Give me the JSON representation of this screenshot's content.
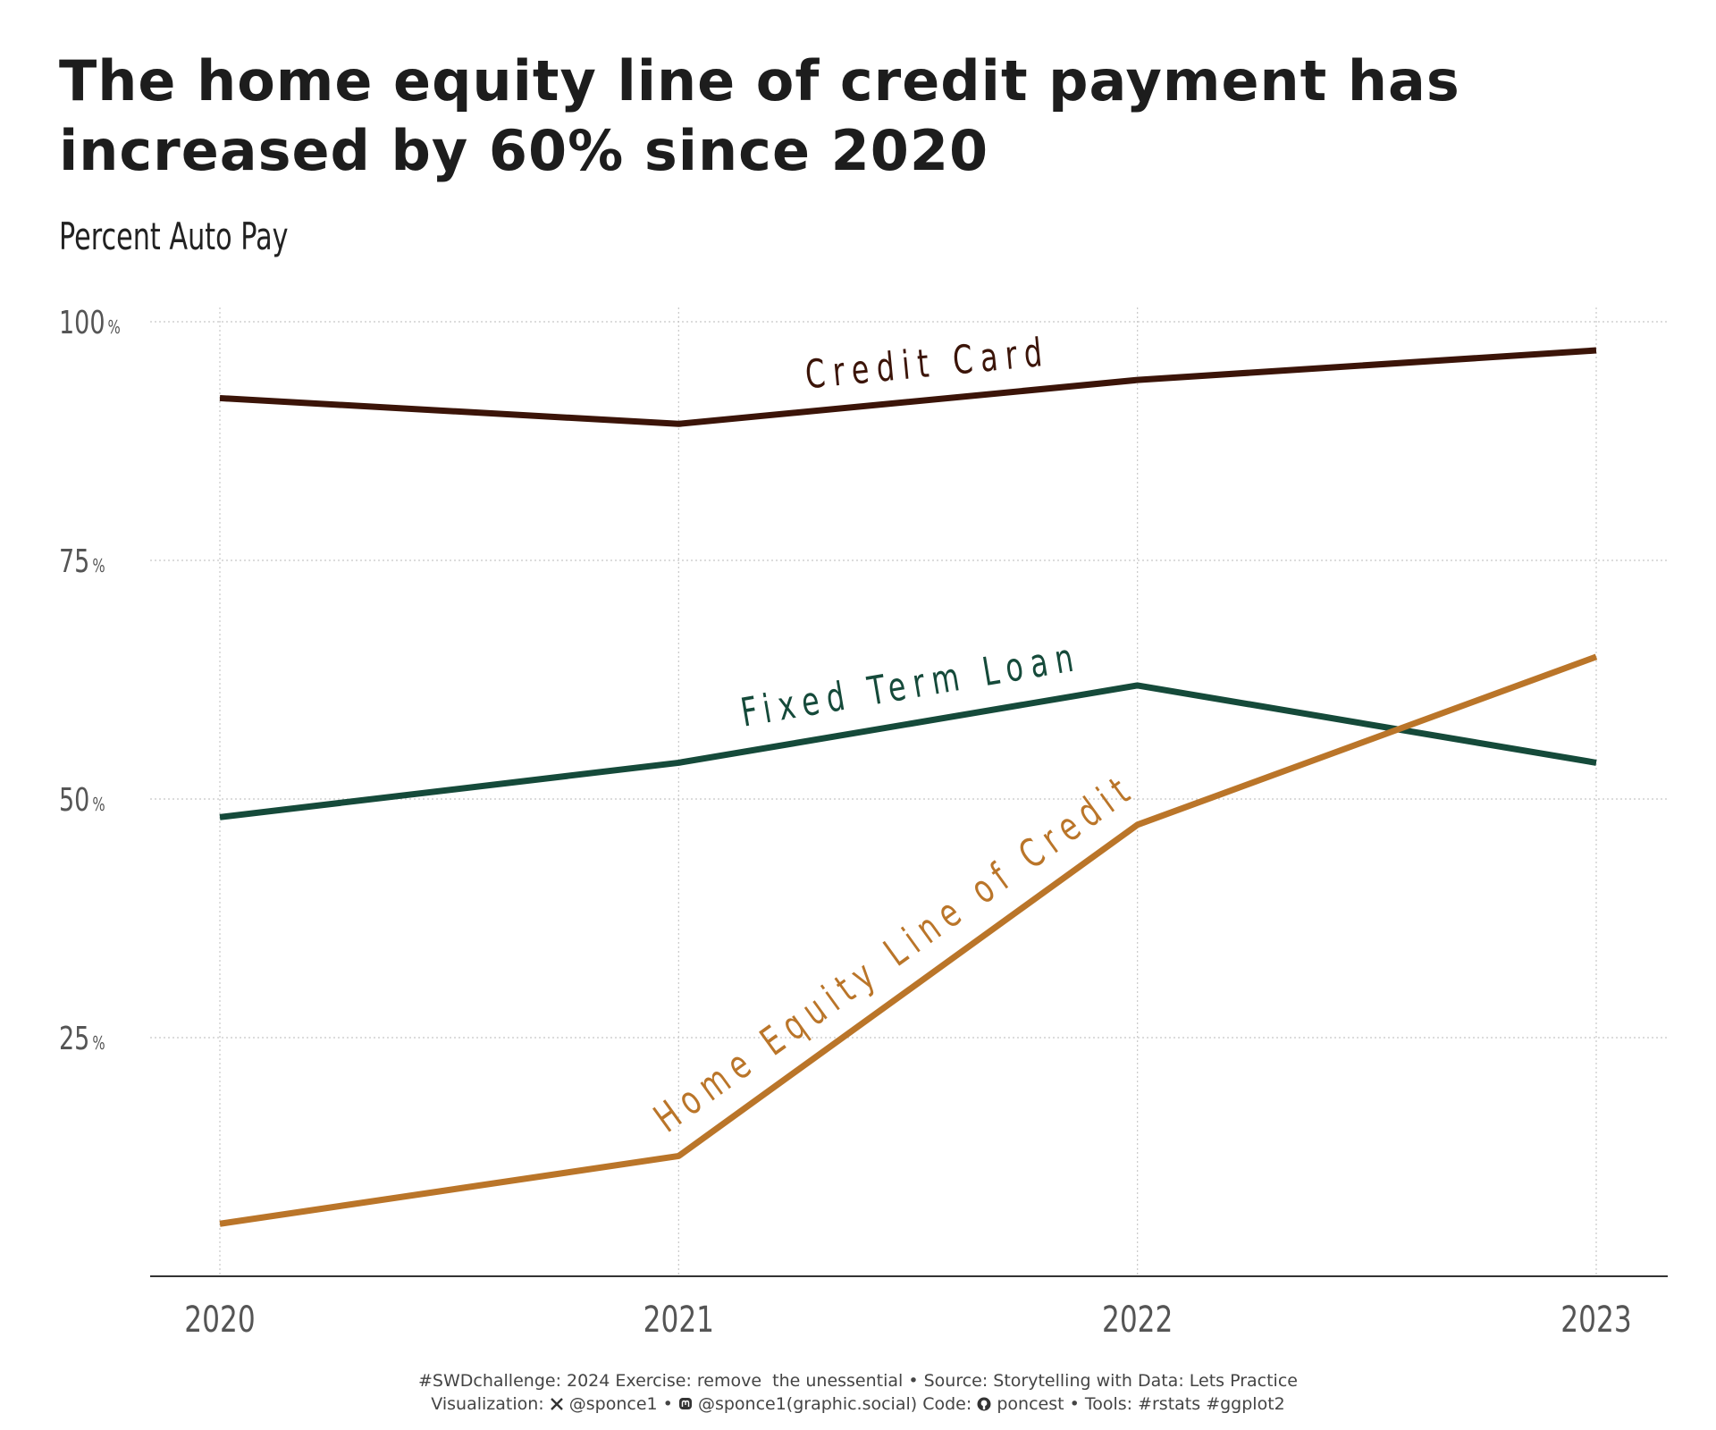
{
  "title": "The home equity line of credit payment has increased by 60% since 2020",
  "subtitle": "Percent Auto Pay",
  "chart_data": {
    "type": "line",
    "x": [
      "2020",
      "2021",
      "2022",
      "2023"
    ],
    "ylim": [
      0,
      100
    ],
    "yticks": [
      {
        "value": 25,
        "label": "25",
        "unit": "%"
      },
      {
        "value": 50,
        "label": "50",
        "unit": "%"
      },
      {
        "value": 75,
        "label": "75",
        "unit": "%"
      },
      {
        "value": 100,
        "label": "100",
        "unit": "%"
      }
    ],
    "grid": true,
    "legend": "direct labels on lines",
    "series": [
      {
        "name": "Credit Card",
        "values": [
          92,
          89.3,
          93.9,
          97
        ],
        "color": "#3b1408"
      },
      {
        "name": "Fixed Term Loan",
        "values": [
          48.1,
          53.8,
          61.9,
          53.8
        ],
        "color": "#154a3a"
      },
      {
        "name": "Home Equity Line of Credit",
        "values": [
          5.5,
          12.6,
          47.3,
          64.9
        ],
        "color": "#ba7529"
      }
    ]
  },
  "caption": {
    "line1": "#SWDchallenge: 2024 Exercise: remove  the unessential • Source: Storytelling with Data: Lets Practice",
    "line2_prefix": "Visualization: ",
    "x_handle": " @sponce1 • ",
    "mastodon_handle": " @sponce1(graphic.social) Code: ",
    "github_handle": " poncest • Tools: #rstats #ggplot2",
    "x_icon": "x-logo-icon",
    "mastodon_icon": "mastodon-icon",
    "github_icon": "github-icon"
  }
}
